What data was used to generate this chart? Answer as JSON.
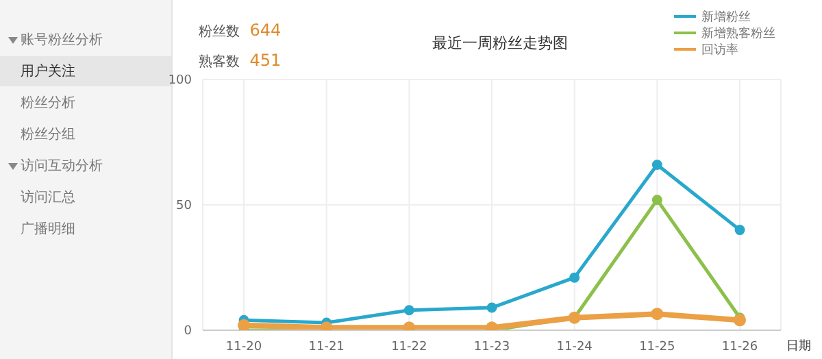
{
  "chart_data": {
    "type": "line",
    "title": "最近一周粉丝走势图",
    "xlabel": "日期",
    "categories": [
      "11-20",
      "11-21",
      "11-22",
      "11-23",
      "11-24",
      "11-25",
      "11-26"
    ],
    "series": [
      {
        "name": "新增粉丝",
        "color": "#29a8cc",
        "values": [
          4,
          3,
          8,
          9,
          21,
          66,
          40
        ]
      },
      {
        "name": "新增熟客粉丝",
        "color": "#8cc04a",
        "values": [
          0,
          0,
          0,
          0,
          5,
          52,
          5
        ]
      },
      {
        "name": "回访率",
        "color": "#eba045",
        "values": [
          2,
          1,
          1,
          1,
          5,
          6.5,
          4
        ]
      }
    ],
    "ylim": [
      0,
      100
    ],
    "yticks": [
      0,
      50,
      100
    ],
    "grid": true,
    "legend": "top right",
    "marker": "circle",
    "line_style": "solid",
    "annotations": [
      "粉丝数",
      "644",
      "熟客数",
      "451",
      "账号粉丝分析",
      "用户关注",
      "粉丝分析",
      "粉丝分组",
      "访问互动分析",
      "访问汇总",
      "广播明细"
    ]
  }
}
